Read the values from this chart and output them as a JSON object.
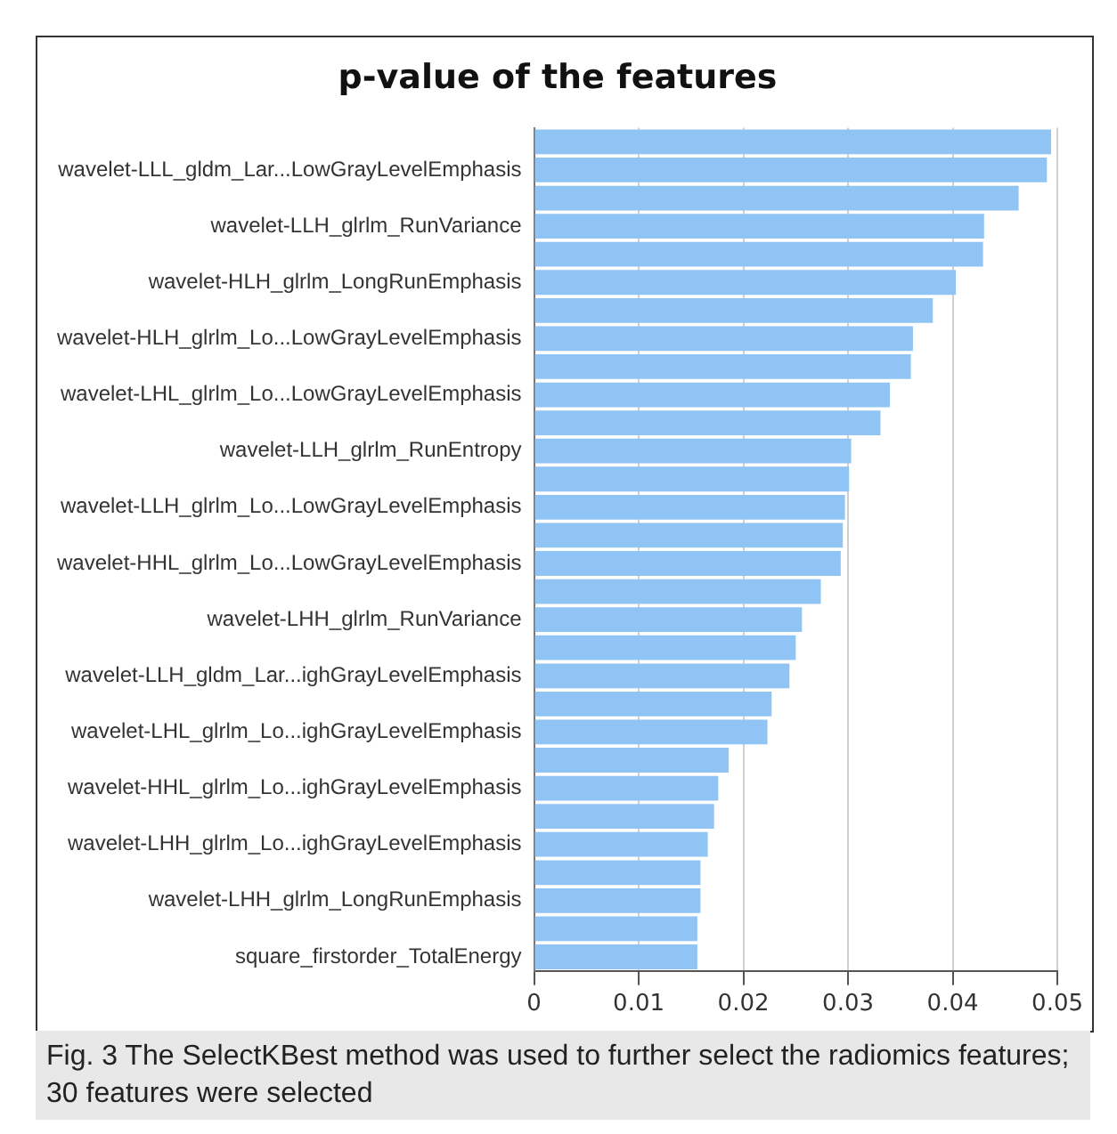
{
  "chart_data": {
    "type": "bar",
    "orientation": "horizontal",
    "title": "p-value of the features",
    "categories": [
      null,
      "wavelet-LLL_gldm_Lar...LowGrayLevelEmphasis",
      null,
      "wavelet-LLH_glrlm_RunVariance",
      null,
      "wavelet-HLH_glrlm_LongRunEmphasis",
      null,
      "wavelet-HLH_glrlm_Lo...LowGrayLevelEmphasis",
      null,
      "wavelet-LHL_glrlm_Lo...LowGrayLevelEmphasis",
      null,
      "wavelet-LLH_glrlm_RunEntropy",
      null,
      "wavelet-LLH_glrlm_Lo...LowGrayLevelEmphasis",
      null,
      "wavelet-HHL_glrlm_Lo...LowGrayLevelEmphasis",
      null,
      "wavelet-LHH_glrlm_RunVariance",
      null,
      "wavelet-LLH_gldm_Lar...ighGrayLevelEmphasis",
      null,
      "wavelet-LHL_glrlm_Lo...ighGrayLevelEmphasis",
      null,
      "wavelet-HHL_glrlm_Lo...ighGrayLevelEmphasis",
      null,
      "wavelet-LHH_glrlm_Lo...ighGrayLevelEmphasis",
      null,
      "wavelet-LHH_glrlm_LongRunEmphasis",
      null,
      "square_firstorder_TotalEnergy"
    ],
    "values": [
      0.0494,
      0.049,
      0.0463,
      0.043,
      0.0429,
      0.0403,
      0.0381,
      0.0362,
      0.036,
      0.034,
      0.0331,
      0.0303,
      0.0301,
      0.0297,
      0.0295,
      0.0293,
      0.0274,
      0.0256,
      0.025,
      0.0244,
      0.0227,
      0.0223,
      0.0186,
      0.0176,
      0.0172,
      0.0166,
      0.0159,
      0.0159,
      0.0156,
      0.0156
    ],
    "color": "#90c4f4",
    "xlim": [
      0,
      0.05
    ],
    "xticks": [
      0,
      0.01,
      0.02,
      0.03,
      0.04,
      0.05
    ],
    "grid": "x",
    "annotations": [
      "Fig. 3 The SelectKBest method was used to further select the radiomics features; 30 features were selected"
    ]
  }
}
